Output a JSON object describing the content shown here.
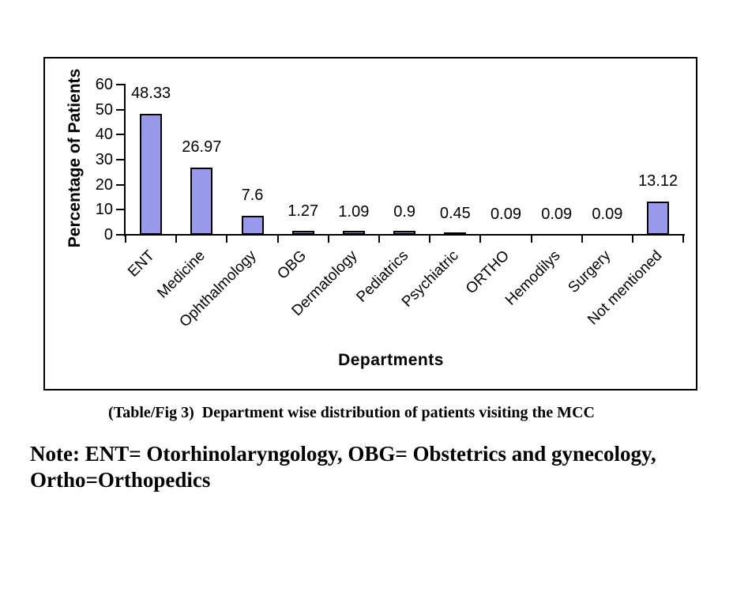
{
  "chart_data": {
    "type": "bar",
    "title": "",
    "xlabel": "Departments",
    "ylabel": "Percentage of Patients",
    "categories": [
      "ENT",
      "Medicine",
      "Ophthalmology",
      "OBG",
      "Dermatology",
      "Pediatrics",
      "Psychiatric",
      "ORTHO",
      "Hemodilys",
      "Surgery",
      "Not mentioned"
    ],
    "values": [
      48.33,
      26.97,
      7.6,
      1.27,
      1.09,
      0.9,
      0.45,
      0.09,
      0.09,
      0.09,
      13.12
    ],
    "data_labels": [
      "48.33",
      "26.97",
      "7.6",
      "1.27",
      "1.09",
      "0.9",
      "0.45",
      "0.09",
      "0.09",
      "0.09",
      "13.12"
    ],
    "ylim": [
      0,
      60
    ],
    "yticks": [
      0,
      10,
      20,
      30,
      40,
      50,
      60
    ],
    "grid": false,
    "legend": false,
    "bar_color": "#9999EB",
    "bar_border_color": "#000000",
    "axis_color": "#000000"
  },
  "caption": "(Table/Fig 3)  Department wise distribution of patients visiting the MCC",
  "note": "Note: ENT= Otorhinolaryngology, OBG= Obstetrics and gynecology, Ortho=Orthopedics"
}
